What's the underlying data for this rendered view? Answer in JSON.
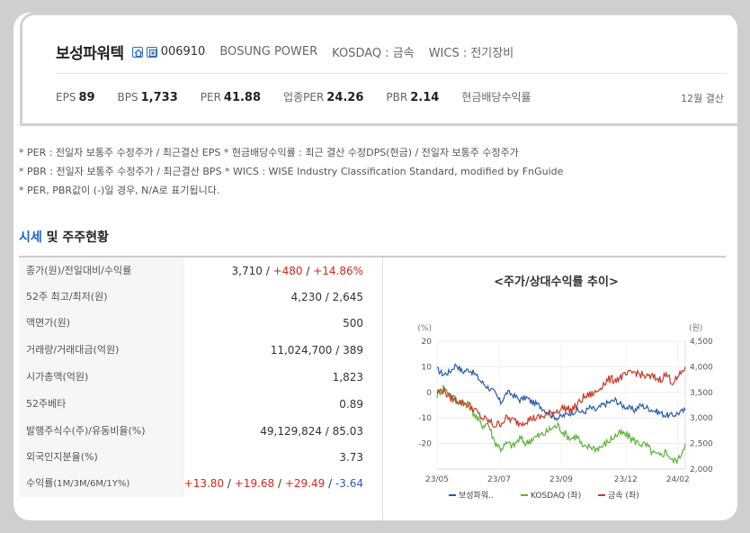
{
  "header": {
    "corp_name": "보성파워텍",
    "code": "006910",
    "eng_name": "BOSUNG POWER",
    "market": "KOSDAQ : 금속",
    "wics": "WICS : 전기장비",
    "metrics": [
      {
        "label": "EPS",
        "value": "89"
      },
      {
        "label": "BPS",
        "value": "1,733"
      },
      {
        "label": "PER",
        "value": "41.88"
      },
      {
        "label": "업종PER",
        "value": "24.26"
      },
      {
        "label": "PBR",
        "value": "2.14"
      },
      {
        "label": "현금배당수익률",
        "value": ""
      }
    ],
    "settlement": "12월 결산"
  },
  "notes": [
    "* PER : 전일자 보통주 수정주가 / 최근결산 EPS * 현금배당수익률 : 최근 결산 수정DPS(현금) / 전일자 보통주 수정주가",
    "* PBR : 전일자 보통주 수정주가 / 최근결산 BPS * WICS : WISE Industry Classification Standard, modified by FnGuide",
    "* PER, PBR값이 (-)일 경우, N/A로 표기됩니다."
  ],
  "section": {
    "title_hl": "시세",
    "title_rest": " 및 주주현황"
  },
  "table": {
    "rows": [
      {
        "label": "종가(원)/전일대비/수익률",
        "v1": "3,710",
        "sep1": " / ",
        "v2": "+480",
        "sep2": " / ",
        "v3": "+14.86%"
      },
      {
        "label": "52주 최고/최저(원)",
        "value": "4,230 / 2,645"
      },
      {
        "label": "액면가(원)",
        "value": "500"
      },
      {
        "label": "거래량/거래대금(억원)",
        "value": "11,024,700 / 389"
      },
      {
        "label": "시가총액(억원)",
        "value": "1,823"
      },
      {
        "label": "52주베타",
        "value": "0.89"
      },
      {
        "label": "발행주식수(주)/유동비율(%)",
        "value": "49,129,824 / 85.03"
      },
      {
        "label": "외국인지분율(%)",
        "value": "3.73"
      },
      {
        "label": "수익률",
        "label_small": "(1M/3M/6M/1Y%)",
        "r1": "+13.80",
        "r2": "+19.68",
        "r3": "+29.49",
        "r4": "-3.64",
        "sep": " / "
      }
    ]
  },
  "chart_data": {
    "type": "line",
    "title": "<주가/상대수익률 추이>",
    "left_unit": "(%)",
    "right_unit": "(원)",
    "left_ticks": [
      "20",
      "10",
      "0",
      "-10",
      "-20"
    ],
    "right_ticks": [
      "4,500",
      "4,000",
      "3,500",
      "3,000",
      "2,500",
      "2,000"
    ],
    "x_ticks": [
      "23/05",
      "23/07",
      "23/09",
      "23/12",
      "24/02"
    ],
    "ylim_left": [
      -30,
      20
    ],
    "ylim_right": [
      2000,
      4500
    ],
    "series": [
      {
        "name": "보성파워..",
        "axis": "right",
        "color": "#2a5aa8",
        "values": [
          3950,
          3850,
          3900,
          4050,
          3900,
          3950,
          3850,
          3700,
          3600,
          3500,
          3300,
          3500,
          3450,
          3350,
          3400,
          3300,
          3250,
          3150,
          3050,
          3000,
          3050,
          3100,
          3150,
          3100,
          3200,
          3150,
          3250,
          3300,
          3350,
          3250,
          3200,
          3150,
          3250,
          3200,
          3150,
          3100,
          3050,
          3050,
          3100,
          3150
        ]
      },
      {
        "name": "KOSDAQ (좌)",
        "axis": "left",
        "color": "#5db33b",
        "values": [
          -1,
          2,
          -1,
          -3,
          -4,
          -5,
          -9,
          -13,
          -12,
          -19,
          -22,
          -20,
          -21,
          -18,
          -20,
          -18,
          -17,
          -16,
          -14,
          -13,
          -16,
          -18,
          -17,
          -22,
          -21,
          -22,
          -21,
          -19,
          -17,
          -16,
          -17,
          -19,
          -20,
          -21,
          -24,
          -25,
          -23,
          -27,
          -26,
          -20
        ]
      },
      {
        "name": "금속 (좌)",
        "axis": "left",
        "color": "#c63b2a",
        "values": [
          0,
          1,
          -2,
          -3,
          -4,
          -5,
          -7,
          -10,
          -11,
          -13,
          -12,
          -10,
          -11,
          -12,
          -11,
          -10,
          -10,
          -9,
          -8,
          -7,
          -6,
          -7,
          -5,
          -2,
          -1,
          0,
          3,
          5,
          5,
          6,
          7,
          8,
          7,
          6,
          6,
          5,
          7,
          4,
          6,
          10
        ]
      }
    ]
  }
}
